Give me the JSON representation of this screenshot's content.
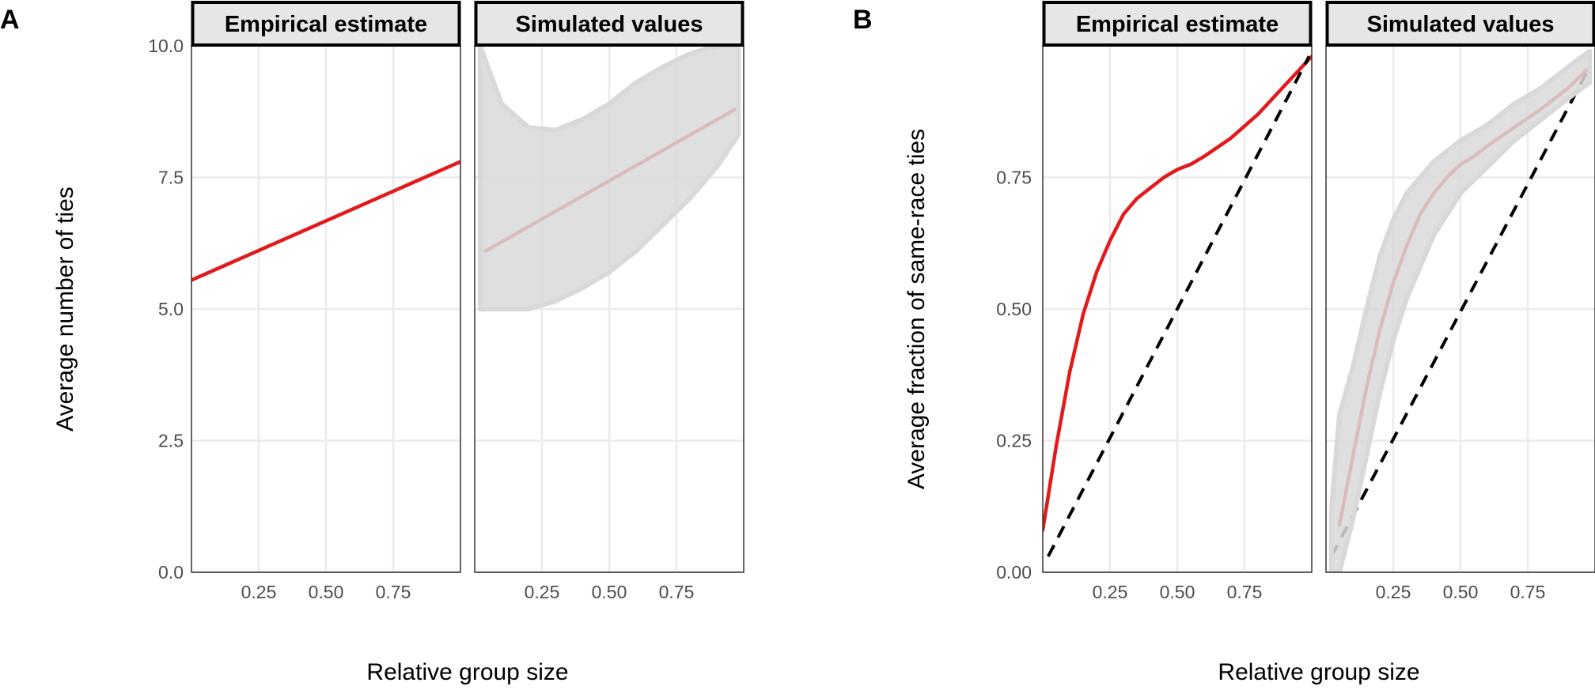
{
  "colors": {
    "fit_line": "#e31a1c",
    "simulated_points": "#d9d9d9",
    "diagonal": "#000000",
    "grid": "#ebebeb",
    "strip_fill": "#e6e6e6",
    "strip_border": "#000000",
    "frame": "#333333",
    "tick_text": "#4d4d4d"
  },
  "chart_data": [
    {
      "panel_label": "A",
      "type": "line",
      "facets": [
        "Empirical estimate",
        "Simulated values"
      ],
      "xlabel": "Relative group size",
      "ylabel": "Average number of ties",
      "xlim": [
        0,
        1
      ],
      "ylim": [
        0,
        10
      ],
      "xticks": [
        "0.25",
        "0.50",
        "0.75"
      ],
      "xtick_values": [
        0.25,
        0.5,
        0.75
      ],
      "yticks": [
        "0.0",
        "2.5",
        "5.0",
        "7.5",
        "10.0"
      ],
      "ytick_values": [
        0,
        2.5,
        5,
        7.5,
        10
      ],
      "grid": true,
      "series": [
        {
          "facet": "Empirical estimate",
          "kind": "fit_line",
          "x": [
            0.0,
            1.0
          ],
          "y": [
            5.55,
            7.8
          ]
        },
        {
          "facet": "Simulated values",
          "kind": "fit_line",
          "x": [
            0.04,
            0.97
          ],
          "y": [
            6.1,
            8.8
          ]
        },
        {
          "facet": "Simulated values",
          "kind": "point_cloud",
          "x": [
            0.02,
            0.1,
            0.2,
            0.3,
            0.4,
            0.5,
            0.6,
            0.7,
            0.8,
            0.9,
            0.98
          ],
          "y_low": [
            5.0,
            5.0,
            5.0,
            5.15,
            5.4,
            5.7,
            6.1,
            6.6,
            7.1,
            7.7,
            8.3
          ],
          "y_high": [
            10.0,
            8.9,
            8.45,
            8.4,
            8.6,
            8.9,
            9.3,
            9.6,
            9.85,
            10.0,
            10.0
          ]
        }
      ]
    },
    {
      "panel_label": "B",
      "type": "line",
      "facets": [
        "Empirical estimate",
        "Simulated values"
      ],
      "xlabel": "Relative group size",
      "ylabel": "Average fraction of same-race ties",
      "xlim": [
        0,
        1
      ],
      "ylim": [
        0,
        1
      ],
      "xticks": [
        "0.25",
        "0.50",
        "0.75"
      ],
      "xtick_values": [
        0.25,
        0.5,
        0.75
      ],
      "yticks": [
        "0.00",
        "0.25",
        "0.50",
        "0.75"
      ],
      "ytick_values": [
        0,
        0.25,
        0.5,
        0.75
      ],
      "grid": true,
      "series": [
        {
          "facet": "Empirical estimate",
          "kind": "fit_line",
          "x": [
            0.0,
            0.05,
            0.1,
            0.15,
            0.2,
            0.25,
            0.3,
            0.35,
            0.4,
            0.45,
            0.5,
            0.55,
            0.6,
            0.7,
            0.8,
            0.9,
            1.0
          ],
          "y": [
            0.08,
            0.24,
            0.38,
            0.49,
            0.57,
            0.63,
            0.68,
            0.71,
            0.73,
            0.75,
            0.765,
            0.775,
            0.79,
            0.825,
            0.87,
            0.925,
            0.98
          ]
        },
        {
          "facet": "Empirical estimate",
          "kind": "diagonal",
          "x": [
            0.02,
            0.99
          ],
          "y": [
            0.03,
            0.98
          ]
        },
        {
          "facet": "Simulated values",
          "kind": "fit_line",
          "x": [
            0.05,
            0.1,
            0.15,
            0.2,
            0.25,
            0.3,
            0.35,
            0.4,
            0.45,
            0.5,
            0.55,
            0.6,
            0.7,
            0.8,
            0.9,
            0.97
          ],
          "y": [
            0.09,
            0.22,
            0.35,
            0.46,
            0.55,
            0.62,
            0.68,
            0.72,
            0.75,
            0.775,
            0.79,
            0.81,
            0.845,
            0.88,
            0.92,
            0.955
          ]
        },
        {
          "facet": "Simulated values",
          "kind": "diagonal",
          "x": [
            0.02,
            0.98
          ],
          "y": [
            0.03,
            0.96
          ]
        },
        {
          "facet": "Simulated values",
          "kind": "point_cloud",
          "x": [
            0.02,
            0.05,
            0.1,
            0.15,
            0.2,
            0.25,
            0.3,
            0.4,
            0.5,
            0.6,
            0.7,
            0.8,
            0.9,
            0.98
          ],
          "y_low": [
            0.0,
            0.0,
            0.1,
            0.22,
            0.34,
            0.44,
            0.52,
            0.64,
            0.72,
            0.77,
            0.82,
            0.86,
            0.9,
            0.93
          ],
          "y_high": [
            0.12,
            0.3,
            0.39,
            0.5,
            0.6,
            0.67,
            0.72,
            0.78,
            0.82,
            0.85,
            0.89,
            0.92,
            0.96,
            0.99
          ]
        }
      ]
    }
  ]
}
